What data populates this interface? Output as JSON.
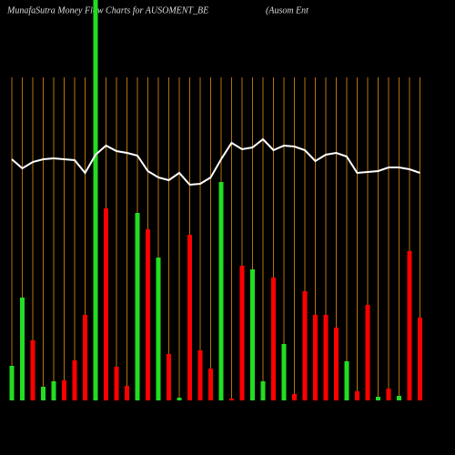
{
  "chart_data": {
    "type": "bar",
    "title": "MunafaSutra  Money Flow  Charts for AUSOMENT_BE",
    "subtitle": "(Ausom Ent",
    "categories": [
      null,
      null,
      null,
      null,
      null,
      null,
      null,
      null,
      null,
      null,
      null,
      null,
      null,
      null,
      null,
      null,
      null,
      null,
      null,
      null,
      null,
      null,
      null,
      null,
      null,
      null,
      null,
      null,
      null,
      null,
      null,
      null,
      null,
      null,
      null,
      null,
      null,
      null,
      null,
      null
    ],
    "series": [
      {
        "type": "bar",
        "colors": [
          "#22dd22",
          "#22dd22",
          "#ff0000",
          "#22dd22",
          "#22dd22",
          "#ff0000",
          "#ff0000",
          "#ff0000",
          "#22dd22",
          "#ff0000",
          "#ff0000",
          "#ff0000",
          "#22dd22",
          "#ff0000",
          "#22dd22",
          "#ff0000",
          "#22dd22",
          "#ff0000",
          "#ff0000",
          "#ff0000",
          "#22dd22",
          "#ff0000",
          "#ff0000",
          "#22dd22",
          "#22dd22",
          "#ff0000",
          "#22dd22",
          "#ff0000",
          "#ff0000",
          "#ff0000",
          "#ff0000",
          "#ff0000",
          "#22dd22",
          "#ff0000",
          "#ff0000",
          "#22dd22",
          "#ff0000",
          "#22dd22",
          "#ff0000",
          "#ff0000"
        ],
        "values": [
          38,
          113,
          66,
          15,
          21,
          22,
          44,
          94,
          440,
          211,
          37,
          16,
          206,
          188,
          157,
          51,
          3,
          182,
          55,
          35,
          240,
          2,
          148,
          144,
          21,
          135,
          62,
          7,
          120,
          94,
          94,
          80,
          43,
          10,
          105,
          4,
          13,
          5,
          164,
          91
        ]
      },
      {
        "type": "line",
        "color": "#ffffff",
        "axis": "y2",
        "values": [
          265,
          255,
          262,
          265,
          266,
          265,
          264,
          250,
          270,
          280,
          274,
          272,
          269,
          252,
          245,
          242,
          250,
          237,
          238,
          245,
          265,
          283,
          276,
          278,
          287,
          275,
          280,
          279,
          275,
          263,
          270,
          272,
          268,
          250,
          251,
          252,
          256,
          256,
          254,
          250
        ]
      }
    ],
    "ylim": [
      0,
      440
    ],
    "y2lim": [
      0,
      440
    ],
    "grid_color": "#b8720a"
  }
}
